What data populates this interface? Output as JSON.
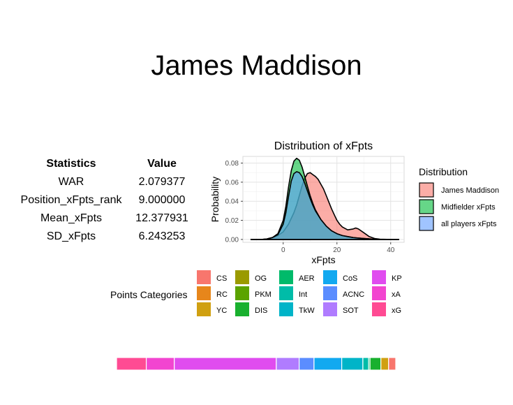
{
  "title": "James Maddison",
  "stats_table": {
    "headers": [
      "Statistics",
      "Value"
    ],
    "rows": [
      {
        "stat": "WAR",
        "value": "2.079377"
      },
      {
        "stat": "Position_xFpts_rank",
        "value": "9.000000"
      },
      {
        "stat": "Mean_xFpts",
        "value": "12.377931"
      },
      {
        "stat": "SD_xFpts",
        "value": "6.243253"
      }
    ]
  },
  "chart_data": [
    {
      "type": "area",
      "title": "Distribution of xFpts",
      "xlabel": "xFpts",
      "ylabel": "Probability",
      "xlim": [
        -15,
        45
      ],
      "ylim": [
        -0.003,
        0.087
      ],
      "xticks": [
        0,
        20,
        40
      ],
      "yticks": [
        0.0,
        0.02,
        0.04,
        0.06,
        0.08
      ],
      "ytick_labels": [
        "0.00",
        "0.02",
        "0.04",
        "0.06",
        "0.08"
      ],
      "grid": true,
      "legend_title": "Distribution",
      "legend_position": "right",
      "series": [
        {
          "name": "James Maddison",
          "color": "#F8766D",
          "x": [
            -12,
            -8,
            -6,
            -4,
            -2,
            0,
            2,
            4,
            5,
            6,
            7,
            8,
            9,
            10,
            11,
            12,
            13,
            14,
            15,
            16,
            17,
            18,
            19,
            20,
            21,
            22,
            24,
            26,
            27,
            28,
            30,
            32,
            34,
            36,
            40,
            43
          ],
          "y": [
            0,
            0,
            0.0005,
            0.002,
            0.004,
            0.008,
            0.016,
            0.028,
            0.036,
            0.046,
            0.056,
            0.064,
            0.069,
            0.07,
            0.068,
            0.066,
            0.063,
            0.058,
            0.053,
            0.046,
            0.039,
            0.032,
            0.026,
            0.02,
            0.016,
            0.013,
            0.01,
            0.011,
            0.012,
            0.011,
            0.007,
            0.003,
            0.001,
            0.0003,
            0,
            0
          ]
        },
        {
          "name": "Midfielder xFpts",
          "color": "#00BA38",
          "x": [
            -12,
            -8,
            -6,
            -4,
            -2,
            0,
            1,
            2,
            3,
            4,
            5,
            6,
            7,
            8,
            9,
            10,
            11,
            12,
            14,
            16,
            18,
            20,
            22,
            24,
            26,
            28,
            30,
            32,
            34,
            36,
            40,
            43
          ],
          "y": [
            0,
            0,
            0.0005,
            0.002,
            0.006,
            0.02,
            0.035,
            0.055,
            0.072,
            0.082,
            0.085,
            0.083,
            0.076,
            0.066,
            0.056,
            0.046,
            0.038,
            0.031,
            0.021,
            0.014,
            0.009,
            0.006,
            0.004,
            0.003,
            0.002,
            0.0015,
            0.001,
            0.0006,
            0.0003,
            0.0001,
            0,
            0
          ]
        },
        {
          "name": "all players xFpts",
          "color": "#619CFF",
          "x": [
            -12,
            -8,
            -6,
            -4,
            -2,
            0,
            1,
            2,
            3,
            4,
            5,
            6,
            7,
            8,
            9,
            10,
            11,
            12,
            14,
            16,
            18,
            20,
            22,
            24,
            26,
            28,
            30,
            32,
            34,
            36,
            40,
            43
          ],
          "y": [
            0,
            0,
            0.0005,
            0.002,
            0.005,
            0.016,
            0.028,
            0.045,
            0.061,
            0.069,
            0.071,
            0.07,
            0.066,
            0.059,
            0.051,
            0.043,
            0.036,
            0.03,
            0.021,
            0.014,
            0.009,
            0.006,
            0.004,
            0.003,
            0.002,
            0.0015,
            0.001,
            0.0006,
            0.0003,
            0.0001,
            0,
            0
          ]
        }
      ]
    },
    {
      "type": "bar",
      "orientation": "horizontal-stacked",
      "legend_title": "Points Categories",
      "legend_columns": [
        [
          "CS",
          "RC",
          "YC"
        ],
        [
          "OG",
          "PKM",
          "DIS"
        ],
        [
          "AER",
          "Int",
          "TkW"
        ],
        [
          "CoS",
          "ACNC",
          "SOT"
        ],
        [
          "KP",
          "xA",
          "xG"
        ]
      ],
      "colors": {
        "CS": "#F8766D",
        "RC": "#E7861B",
        "YC": "#D0A011",
        "OG": "#9A9A00",
        "PKM": "#5BA300",
        "DIS": "#19B02E",
        "AER": "#00BA6A",
        "Int": "#00BCA8",
        "TkW": "#00B4C8",
        "CoS": "#12A9F0",
        "ACNC": "#5B8DFF",
        "SOT": "#B07CFF",
        "KP": "#E04CEF",
        "xA": "#F245D0",
        "xG": "#FF4B93"
      },
      "categories": [
        "xG",
        "xA",
        "KP",
        "SOT",
        "ACNC",
        "CoS",
        "TkW",
        "Int",
        "AER",
        "DIS",
        "PKM",
        "OG",
        "YC",
        "RC",
        "CS"
      ],
      "values": [
        0.104,
        0.098,
        0.357,
        0.08,
        0.052,
        0.097,
        0.074,
        0.02,
        0.005,
        0.038,
        0,
        0,
        0.027,
        0,
        0.025
      ]
    }
  ]
}
